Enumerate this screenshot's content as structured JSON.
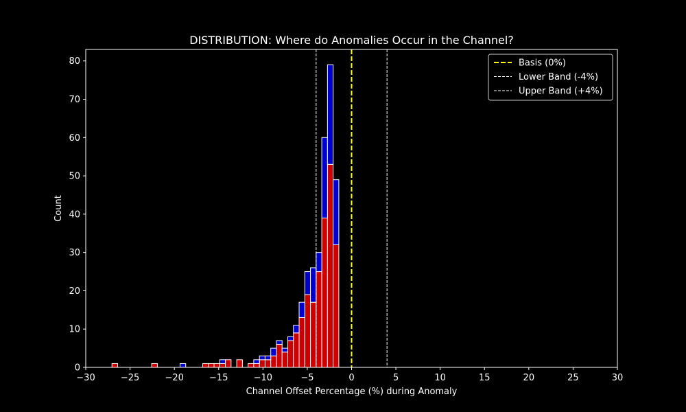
{
  "chart_data": {
    "type": "bar",
    "stacked": true,
    "title": "DISTRIBUTION: Where do Anomalies Occur in the Channel?",
    "xlabel": "Channel Offset Percentage (%) during Anomaly",
    "ylabel": "Count",
    "xlim": [
      -30,
      30
    ],
    "ylim": [
      0,
      83
    ],
    "xticks": [
      -30,
      -25,
      -20,
      -15,
      -10,
      -5,
      0,
      5,
      10,
      15,
      20,
      25,
      30
    ],
    "yticks": [
      0,
      10,
      20,
      30,
      40,
      50,
      60,
      70,
      80
    ],
    "grid": false,
    "legend_position": "top-right",
    "bin_width": 0.64,
    "series": [
      {
        "color": "#cc0000",
        "bins": [
          {
            "x": -27.04,
            "count": 1
          },
          {
            "x": -22.56,
            "count": 1
          },
          {
            "x": -16.8,
            "count": 1
          },
          {
            "x": -16.16,
            "count": 1
          },
          {
            "x": -15.52,
            "count": 1
          },
          {
            "x": -14.88,
            "count": 1
          },
          {
            "x": -14.24,
            "count": 2
          },
          {
            "x": -12.96,
            "count": 2
          },
          {
            "x": -11.68,
            "count": 1
          },
          {
            "x": -11.04,
            "count": 1
          },
          {
            "x": -10.4,
            "count": 2
          },
          {
            "x": -9.76,
            "count": 2
          },
          {
            "x": -9.12,
            "count": 3
          },
          {
            "x": -8.48,
            "count": 6
          },
          {
            "x": -7.84,
            "count": 4
          },
          {
            "x": -7.2,
            "count": 7
          },
          {
            "x": -6.56,
            "count": 9
          },
          {
            "x": -5.92,
            "count": 13
          },
          {
            "x": -5.28,
            "count": 19
          },
          {
            "x": -4.64,
            "count": 17
          },
          {
            "x": -4.0,
            "count": 25
          },
          {
            "x": -3.36,
            "count": 39
          },
          {
            "x": -2.72,
            "count": 53
          },
          {
            "x": -2.08,
            "count": 32
          }
        ]
      },
      {
        "color": "#0000cc",
        "bins": [
          {
            "x": -19.36,
            "count": 1
          },
          {
            "x": -14.88,
            "count": 1
          },
          {
            "x": -14.24,
            "count": 0
          },
          {
            "x": -11.04,
            "count": 1
          },
          {
            "x": -10.4,
            "count": 1
          },
          {
            "x": -9.76,
            "count": 1
          },
          {
            "x": -9.12,
            "count": 2
          },
          {
            "x": -8.48,
            "count": 1
          },
          {
            "x": -7.84,
            "count": 1
          },
          {
            "x": -7.2,
            "count": 1
          },
          {
            "x": -6.56,
            "count": 2
          },
          {
            "x": -5.92,
            "count": 4
          },
          {
            "x": -5.28,
            "count": 6
          },
          {
            "x": -4.64,
            "count": 9
          },
          {
            "x": -4.0,
            "count": 5
          },
          {
            "x": -3.36,
            "count": 21
          },
          {
            "x": -2.72,
            "count": 26
          },
          {
            "x": -2.08,
            "count": 17
          }
        ]
      }
    ],
    "reference_lines": [
      {
        "x": 0,
        "label": "Basis (0%)",
        "color": "#ffff00",
        "style": "dashed",
        "width": 2
      },
      {
        "x": -4,
        "label": "Lower Band (-4%)",
        "color": "#ffffff",
        "style": "dashed",
        "width": 1
      },
      {
        "x": 4,
        "label": "Upper Band (+4%)",
        "color": "#ffffff",
        "style": "dashed",
        "width": 1
      }
    ]
  }
}
